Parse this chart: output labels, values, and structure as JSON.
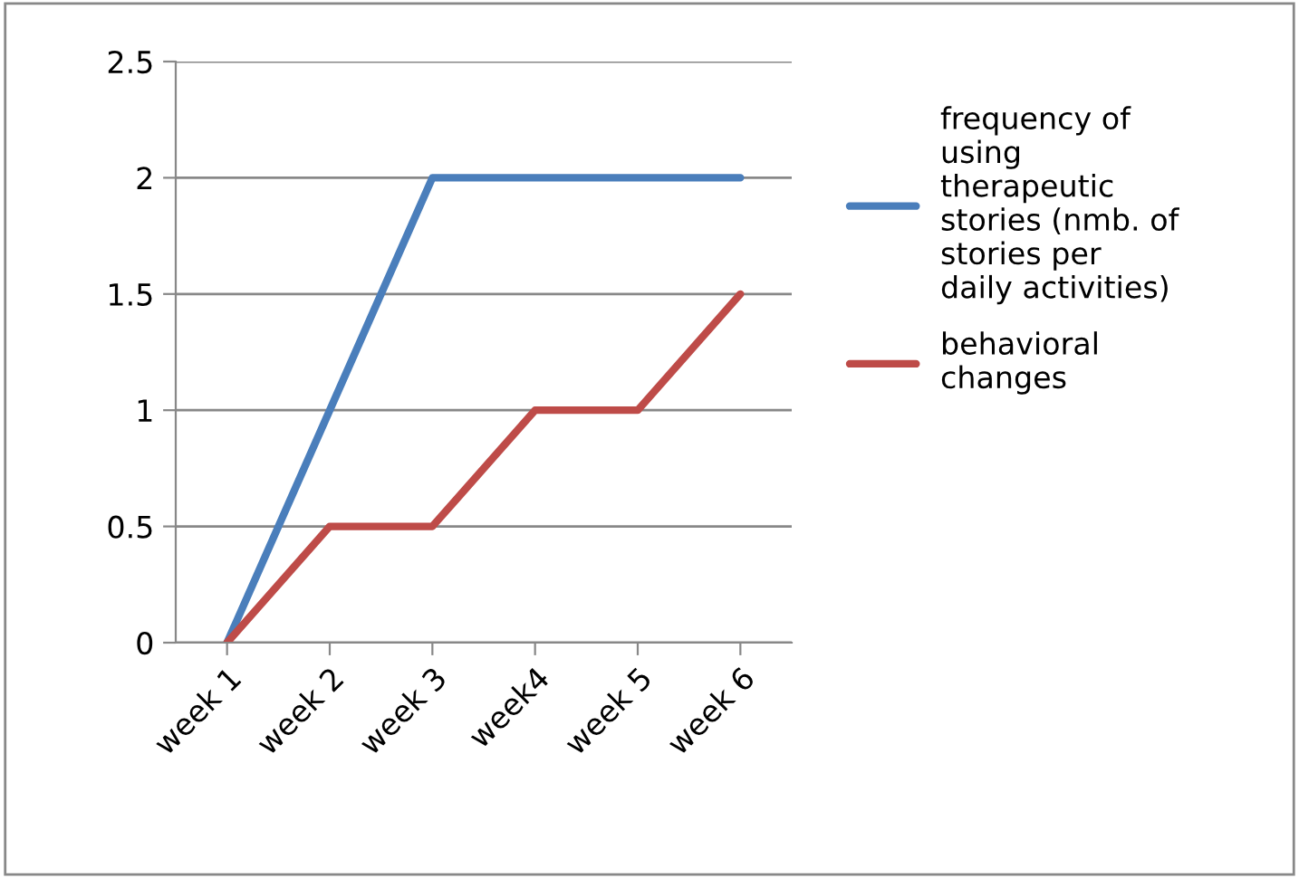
{
  "chart_data": {
    "type": "line",
    "categories": [
      "week 1",
      "week 2",
      "week 3",
      "week4",
      "week 5",
      "week 6"
    ],
    "series": [
      {
        "name": "frequency of\nusing\ntherapeutic\nstories (nmb. of\nstories per\ndaily activities)",
        "color": "#4a7ebb",
        "values": [
          0,
          1,
          2,
          2,
          2,
          2
        ]
      },
      {
        "name": "behavioral\nchanges",
        "color": "#be4b48",
        "values": [
          0,
          0.5,
          0.5,
          1,
          1,
          1.5
        ]
      }
    ],
    "ylim": [
      0,
      2.5
    ],
    "yticks": [
      0,
      0.5,
      1,
      1.5,
      2,
      2.5
    ],
    "grid": "y",
    "legend": "right",
    "marker": "none",
    "line_style": "solid"
  }
}
